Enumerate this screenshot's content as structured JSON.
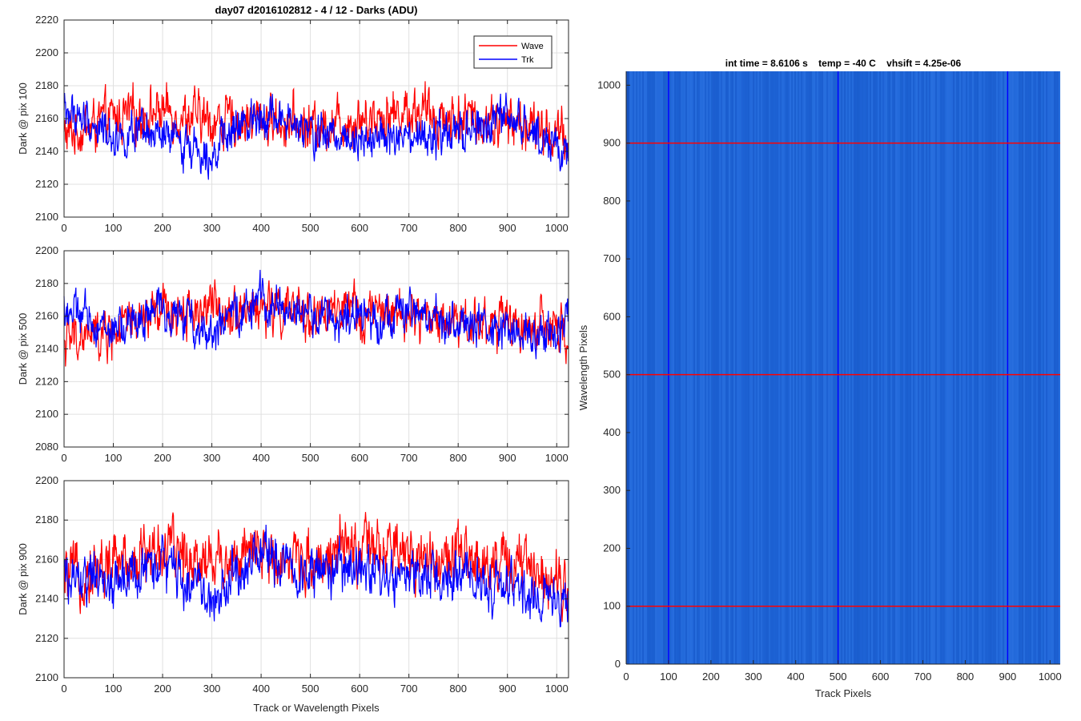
{
  "figure": {
    "title": "day07 d2016102812 - 4 / 12 - Darks (ADU)",
    "colors": {
      "wave": "#ff0000",
      "trk": "#0000ff",
      "image_base": "#1f66d8"
    }
  },
  "chart_data": [
    {
      "type": "line",
      "title": "day07 d2016102812 - 4 / 12 - Darks (ADU)",
      "xlabel": "",
      "ylabel": "Dark @ pix 100",
      "xlim": [
        0,
        1024
      ],
      "ylim": [
        2100,
        2220
      ],
      "xticks": [
        0,
        100,
        200,
        300,
        400,
        500,
        600,
        700,
        800,
        900,
        1000
      ],
      "yticks": [
        2100,
        2120,
        2140,
        2160,
        2180,
        2200,
        2220
      ],
      "grid": true,
      "legend": {
        "location": "top-right",
        "entries": [
          "Wave",
          "Trk"
        ]
      },
      "series": [
        {
          "name": "Wave",
          "color": "#ff0000",
          "mean": 2158,
          "noise": 12,
          "n": 1024,
          "x": [
            0,
            100,
            200,
            300,
            400,
            500,
            600,
            700,
            800,
            900,
            1000,
            1023
          ],
          "values": [
            2150,
            2160,
            2165,
            2158,
            2160,
            2155,
            2160,
            2165,
            2160,
            2158,
            2150,
            2145
          ]
        },
        {
          "name": "Trk",
          "color": "#0000ff",
          "mean": 2150,
          "noise": 10,
          "n": 1024,
          "x": [
            0,
            100,
            200,
            300,
            400,
            500,
            600,
            700,
            800,
            900,
            1000,
            1023
          ],
          "values": [
            2165,
            2150,
            2148,
            2140,
            2165,
            2150,
            2150,
            2145,
            2150,
            2160,
            2145,
            2130
          ]
        }
      ]
    },
    {
      "type": "line",
      "title": "",
      "xlabel": "",
      "ylabel": "Dark @ pix 500",
      "xlim": [
        0,
        1024
      ],
      "ylim": [
        2080,
        2200
      ],
      "xticks": [
        0,
        100,
        200,
        300,
        400,
        500,
        600,
        700,
        800,
        900,
        1000
      ],
      "yticks": [
        2080,
        2100,
        2120,
        2140,
        2160,
        2180,
        2200
      ],
      "grid": true,
      "series": [
        {
          "name": "Wave",
          "color": "#ff0000",
          "mean": 2160,
          "noise": 12,
          "n": 1024,
          "x": [
            0,
            100,
            200,
            300,
            400,
            500,
            600,
            700,
            800,
            900,
            1000,
            1023
          ],
          "values": [
            2145,
            2150,
            2162,
            2165,
            2165,
            2160,
            2162,
            2160,
            2158,
            2155,
            2150,
            2145
          ]
        },
        {
          "name": "Trk",
          "color": "#0000ff",
          "mean": 2155,
          "noise": 10,
          "n": 1024,
          "x": [
            0,
            100,
            200,
            300,
            400,
            500,
            600,
            700,
            800,
            900,
            1000,
            1023
          ],
          "values": [
            2165,
            2150,
            2165,
            2150,
            2170,
            2160,
            2158,
            2162,
            2155,
            2150,
            2150,
            2155
          ]
        }
      ]
    },
    {
      "type": "line",
      "title": "",
      "xlabel": "Track or Wavelength Pixels",
      "ylabel": "Dark @ pix 900",
      "xlim": [
        0,
        1024
      ],
      "ylim": [
        2100,
        2200
      ],
      "xticks": [
        0,
        100,
        200,
        300,
        400,
        500,
        600,
        700,
        800,
        900,
        1000
      ],
      "yticks": [
        2100,
        2120,
        2140,
        2160,
        2180,
        2200
      ],
      "grid": true,
      "series": [
        {
          "name": "Wave",
          "color": "#ff0000",
          "mean": 2160,
          "noise": 12,
          "n": 1024,
          "x": [
            0,
            100,
            200,
            300,
            400,
            500,
            600,
            700,
            800,
            900,
            1000,
            1023
          ],
          "values": [
            2150,
            2158,
            2165,
            2160,
            2162,
            2160,
            2165,
            2162,
            2160,
            2158,
            2152,
            2150
          ]
        },
        {
          "name": "Trk",
          "color": "#0000ff",
          "mean": 2152,
          "noise": 10,
          "n": 1024,
          "x": [
            0,
            100,
            200,
            300,
            400,
            500,
            600,
            700,
            800,
            900,
            1000,
            1023
          ],
          "values": [
            2150,
            2148,
            2158,
            2140,
            2165,
            2152,
            2155,
            2150,
            2150,
            2145,
            2140,
            2140
          ]
        }
      ]
    },
    {
      "type": "heatmap",
      "title": "int time = 8.6106 s    temp = -40 C    vhsift = 4.25e-06",
      "xlabel": "Track Pixels",
      "ylabel": "Wavelength Pixels",
      "xlim": [
        0,
        1024
      ],
      "ylim": [
        0,
        1024
      ],
      "xticks": [
        0,
        100,
        200,
        300,
        400,
        500,
        600,
        700,
        800,
        900,
        1000
      ],
      "yticks": [
        0,
        100,
        200,
        300,
        400,
        500,
        600,
        700,
        800,
        900,
        1000
      ],
      "fill_color": "#1f66d8",
      "vertical_markers": {
        "color": "#0000ff",
        "x": [
          100,
          500,
          900
        ]
      },
      "horizontal_markers": {
        "color": "#ff0000",
        "y": [
          100,
          500,
          900
        ]
      }
    }
  ]
}
